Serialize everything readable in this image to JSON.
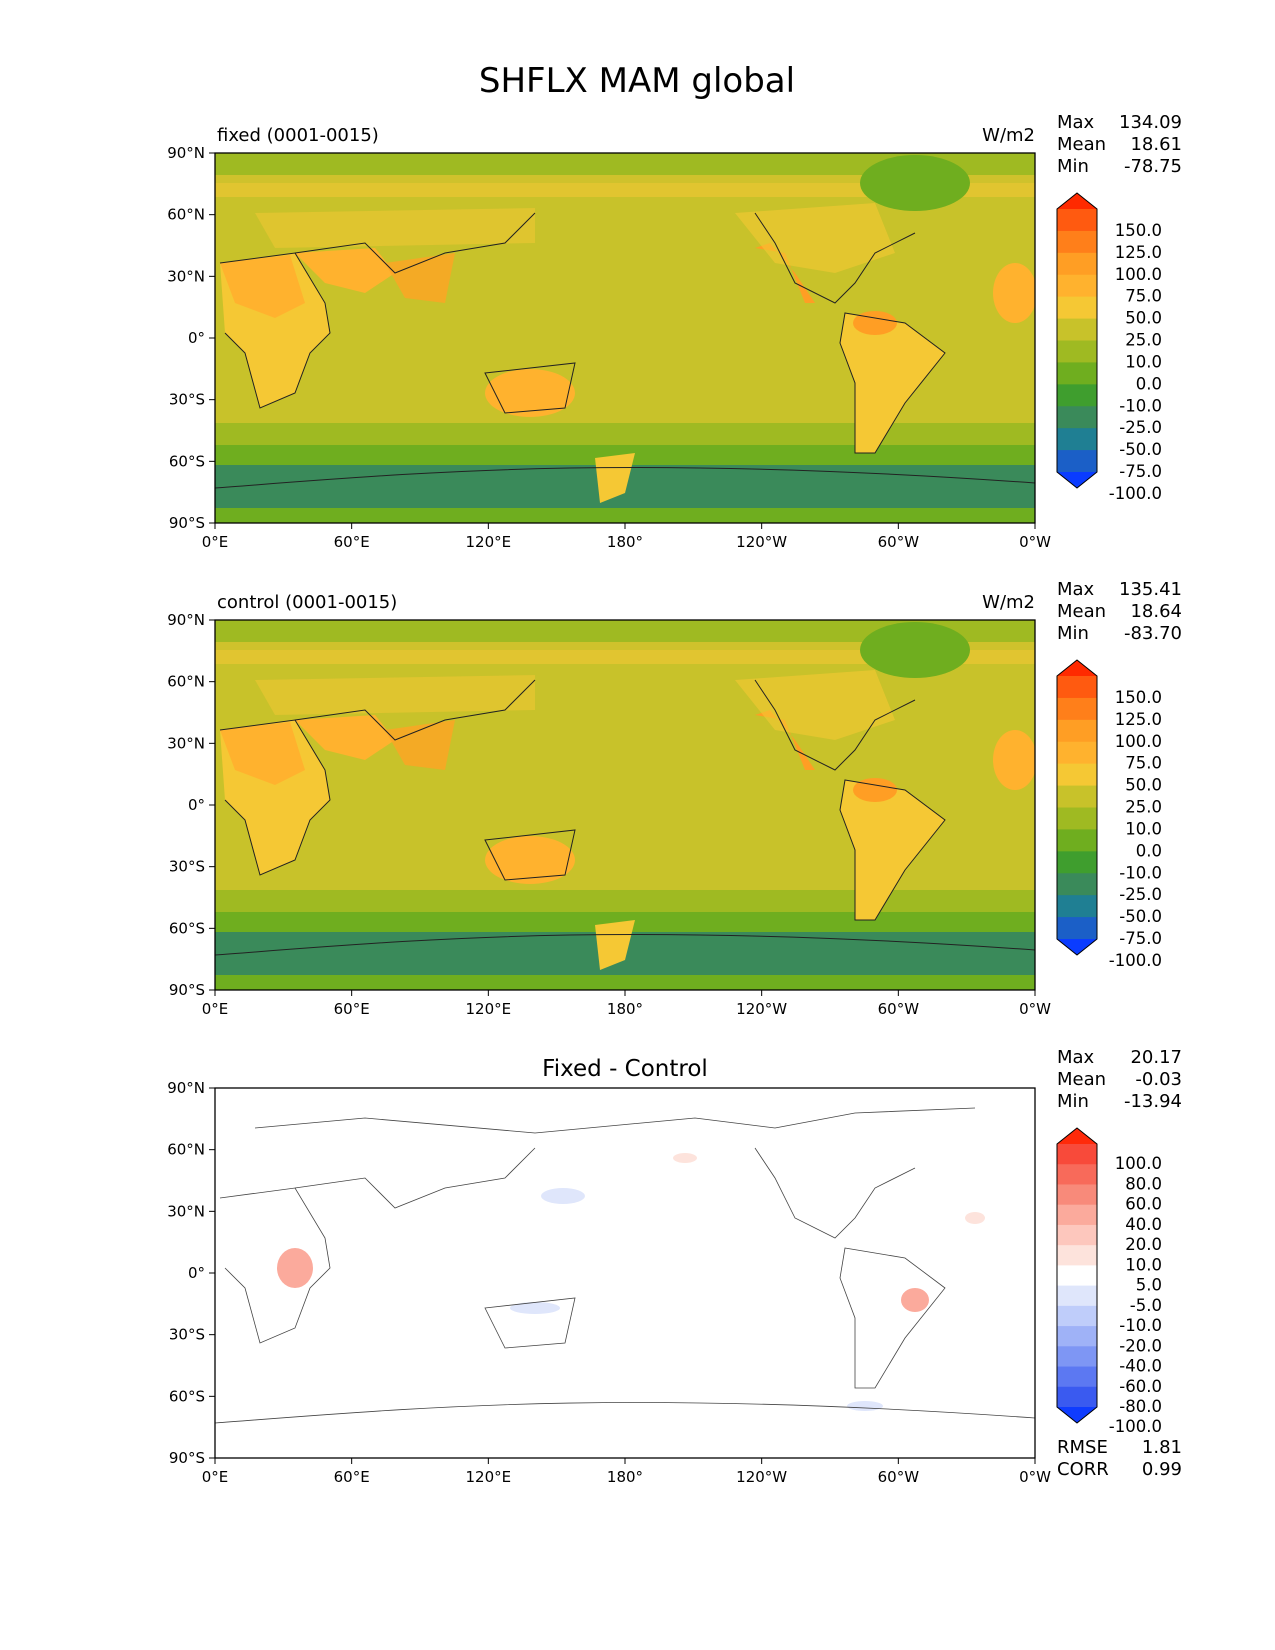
{
  "figure": {
    "title": "SHFLX MAM global"
  },
  "axes": {
    "lat_ticks": [
      "90°N",
      "60°N",
      "30°N",
      "0°",
      "30°S",
      "60°S",
      "90°S"
    ],
    "lon_ticks": [
      "0°E",
      "60°E",
      "120°E",
      "180°",
      "120°W",
      "60°W",
      "0°W"
    ]
  },
  "panels": [
    {
      "id": "fixed",
      "left_title": "fixed (0001-0015)",
      "center_title": "",
      "units": "W/m2",
      "stats": [
        {
          "label": "Max",
          "value": "134.09"
        },
        {
          "label": "Mean",
          "value": "18.61"
        },
        {
          "label": "Min",
          "value": "-78.75"
        }
      ],
      "colorbar": {
        "levels": [
          "150.0",
          "125.0",
          "100.0",
          "75.0",
          "50.0",
          "25.0",
          "10.0",
          "0.0",
          "-10.0",
          "-25.0",
          "-50.0",
          "-75.0",
          "-100.0"
        ],
        "colors": [
          "#ff2a00",
          "#ff5a10",
          "#ff7f1a",
          "#ff9e24",
          "#ffb22e",
          "#f5c834",
          "#c8c22a",
          "#9fba22",
          "#6fae1f",
          "#3f9e2e",
          "#3a8a5a",
          "#1f7f93",
          "#1b5fc7",
          "#0a3cff"
        ]
      }
    },
    {
      "id": "control",
      "left_title": "control (0001-0015)",
      "center_title": "",
      "units": "W/m2",
      "stats": [
        {
          "label": "Max",
          "value": "135.41"
        },
        {
          "label": "Mean",
          "value": "18.64"
        },
        {
          "label": "Min",
          "value": "-83.70"
        }
      ],
      "colorbar": {
        "levels": [
          "150.0",
          "125.0",
          "100.0",
          "75.0",
          "50.0",
          "25.0",
          "10.0",
          "0.0",
          "-10.0",
          "-25.0",
          "-50.0",
          "-75.0",
          "-100.0"
        ],
        "colors": [
          "#ff2a00",
          "#ff5a10",
          "#ff7f1a",
          "#ff9e24",
          "#ffb22e",
          "#f5c834",
          "#c8c22a",
          "#9fba22",
          "#6fae1f",
          "#3f9e2e",
          "#3a8a5a",
          "#1f7f93",
          "#1b5fc7",
          "#0a3cff"
        ]
      }
    },
    {
      "id": "diff",
      "left_title": "",
      "center_title": "Fixed - Control",
      "units": "",
      "stats": [
        {
          "label": "Max",
          "value": "20.17"
        },
        {
          "label": "Mean",
          "value": "-0.03"
        },
        {
          "label": "Min",
          "value": "-13.94"
        }
      ],
      "extra_stats": [
        {
          "label": "RMSE",
          "value": "1.81"
        },
        {
          "label": "CORR",
          "value": "0.99"
        }
      ],
      "colorbar": {
        "levels": [
          "100.0",
          "80.0",
          "60.0",
          "40.0",
          "20.0",
          "10.0",
          "5.0",
          "-5.0",
          "-10.0",
          "-20.0",
          "-40.0",
          "-60.0",
          "-80.0",
          "-100.0"
        ],
        "colors": [
          "#ff2a0a",
          "#f84a3a",
          "#f86a5a",
          "#f88a7a",
          "#fbaa9c",
          "#fdc7bd",
          "#fde3dc",
          "#ffffff",
          "#dfe6fb",
          "#bfcdfa",
          "#9fb2f7",
          "#7e96f4",
          "#5c78f2",
          "#3a5af0",
          "#0f3cff"
        ]
      }
    }
  ]
}
